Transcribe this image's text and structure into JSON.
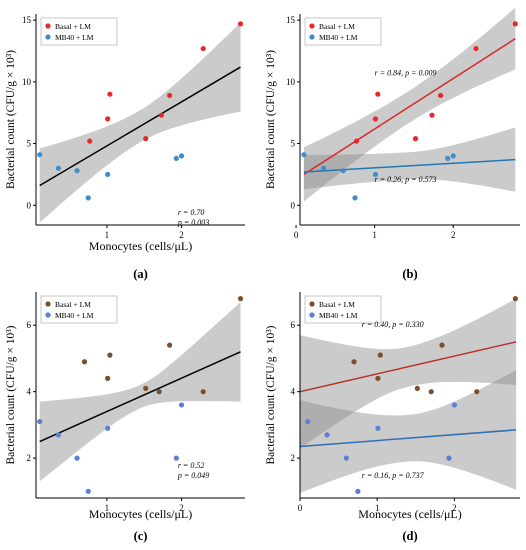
{
  "chart_data": [
    {
      "type": "scatter",
      "panel_label": "(a)",
      "xlabel": "Monocytes (cells/μL)",
      "ylabel": "Bacterial count (CFU/g × 10³)",
      "xlim": [
        0.05,
        2.85
      ],
      "ylim": [
        -1.6,
        15.5
      ],
      "xticks": [
        1,
        2
      ],
      "yticks": [
        0,
        5,
        10,
        15
      ],
      "grid": false,
      "legend": {
        "placement": "top-left",
        "entries": [
          "Basal + LM",
          "MB40 + LM"
        ]
      },
      "series": [
        {
          "name": "Basal + LM",
          "color": "#e8282d",
          "points": [
            [
              0.77,
              5.2
            ],
            [
              1.01,
              7.0
            ],
            [
              1.04,
              9.0
            ],
            [
              1.52,
              5.4
            ],
            [
              1.73,
              7.3
            ],
            [
              1.84,
              8.9
            ],
            [
              2.29,
              12.7
            ],
            [
              2.79,
              14.7
            ]
          ]
        },
        {
          "name": "MB40 + LM",
          "color": "#3f8ecc",
          "points": [
            [
              0.1,
              4.1
            ],
            [
              0.35,
              3.0
            ],
            [
              0.6,
              2.8
            ],
            [
              0.75,
              0.6
            ],
            [
              1.01,
              2.5
            ],
            [
              1.93,
              3.8
            ],
            [
              2.0,
              4.0
            ]
          ]
        }
      ],
      "fits": [
        {
          "color": "#000000",
          "x": [
            0.1,
            2.79
          ],
          "y": [
            1.6,
            11.2
          ],
          "band_half_width_start": 3.0,
          "band_half_width_mid": 1.3,
          "band_half_width_end": 3.6
        }
      ],
      "annotations": [
        {
          "lines": [
            "r = 0.70",
            "p = 0.003"
          ],
          "data_x": 1.95,
          "data_y": -0.8
        }
      ]
    },
    {
      "type": "scatter",
      "panel_label": "(b)",
      "xlabel": "",
      "ylabel": "Bacterial count (CFU/g × 10³)",
      "xlim": [
        0.05,
        2.85
      ],
      "ylim": [
        -1.6,
        15.5
      ],
      "xticks": [
        0,
        1,
        2
      ],
      "yticks": [
        0,
        5,
        10,
        15
      ],
      "grid": false,
      "legend": {
        "placement": "top-left",
        "entries": [
          "Basal + LM",
          "MB40 + LM"
        ]
      },
      "series": [
        {
          "name": "Basal + LM",
          "color": "#e8282d",
          "points": [
            [
              0.77,
              5.2
            ],
            [
              1.01,
              7.0
            ],
            [
              1.04,
              9.0
            ],
            [
              1.52,
              5.4
            ],
            [
              1.73,
              7.3
            ],
            [
              1.84,
              8.9
            ],
            [
              2.29,
              12.7
            ],
            [
              2.79,
              14.7
            ]
          ]
        },
        {
          "name": "MB40 + LM",
          "color": "#3f8ecc",
          "points": [
            [
              0.1,
              4.1
            ],
            [
              0.35,
              3.0
            ],
            [
              0.6,
              2.8
            ],
            [
              0.75,
              0.6
            ],
            [
              1.01,
              2.5
            ],
            [
              1.93,
              3.8
            ],
            [
              2.0,
              4.0
            ]
          ]
        }
      ],
      "fits": [
        {
          "color": "#d62728",
          "x": [
            0.1,
            2.79
          ],
          "y": [
            2.5,
            13.5
          ],
          "band_half_width_start": 2.2,
          "band_half_width_mid": 1.3,
          "band_half_width_end": 2.5
        },
        {
          "color": "#1f77b4",
          "x": [
            0.1,
            2.79
          ],
          "y": [
            2.7,
            3.7
          ],
          "band_half_width_start": 1.4,
          "band_half_width_mid": 1.1,
          "band_half_width_end": 2.6
        }
      ],
      "annotations": [
        {
          "lines": [
            "r = 0.84, p = 0.009"
          ],
          "data_x": 1.0,
          "data_y": 10.5
        },
        {
          "lines": [
            "r = 0.26, p = 0.573"
          ],
          "data_x": 1.0,
          "data_y": 1.9
        }
      ]
    },
    {
      "type": "scatter",
      "panel_label": "(c)",
      "xlabel": "Monocytes (cells/μL)",
      "ylabel": "Bacterial count (CFU/g × 10³)",
      "xlim": [
        0.05,
        2.85
      ],
      "ylim": [
        0.8,
        7.0
      ],
      "xticks": [
        1,
        2
      ],
      "yticks": [
        2,
        4,
        6
      ],
      "grid": false,
      "legend": {
        "placement": "top-left",
        "entries": [
          "Basal + LM",
          "MB40 + LM"
        ]
      },
      "series": [
        {
          "name": "Basal + LM",
          "color": "#7a4f2e",
          "points": [
            [
              0.7,
              4.9
            ],
            [
              1.01,
              4.4
            ],
            [
              1.04,
              5.1
            ],
            [
              1.52,
              4.1
            ],
            [
              1.7,
              4.0
            ],
            [
              1.84,
              5.4
            ],
            [
              2.29,
              4.0
            ],
            [
              2.79,
              6.8
            ]
          ]
        },
        {
          "name": "MB40 + LM",
          "color": "#5b7fd4",
          "points": [
            [
              0.1,
              3.1
            ],
            [
              0.35,
              2.7
            ],
            [
              0.6,
              2.0
            ],
            [
              0.75,
              1.0
            ],
            [
              1.01,
              2.9
            ],
            [
              1.93,
              2.0
            ],
            [
              2.0,
              3.6
            ]
          ]
        }
      ],
      "fits": [
        {
          "color": "#000000",
          "x": [
            0.1,
            2.79
          ],
          "y": [
            2.5,
            5.2
          ],
          "band_half_width_start": 1.2,
          "band_half_width_mid": 0.35,
          "band_half_width_end": 1.5
        }
      ],
      "annotations": [
        {
          "lines": [
            "r = 0.52",
            "p = 0.049"
          ],
          "data_x": 1.95,
          "data_y": 1.7
        }
      ]
    },
    {
      "type": "scatter",
      "panel_label": "(d)",
      "xlabel": "Monocytes (cells/μL)",
      "ylabel": "Bacterial count (CFU/g × 10³)",
      "xlim": [
        0.0,
        2.85
      ],
      "ylim": [
        0.8,
        7.0
      ],
      "xticks": [
        0,
        1,
        2
      ],
      "yticks": [
        2,
        4,
        6
      ],
      "grid": false,
      "legend": {
        "placement": "top-left",
        "entries": [
          "Basal + LM",
          "MB40 + LM"
        ]
      },
      "series": [
        {
          "name": "Basal + LM",
          "color": "#7a4f2e",
          "points": [
            [
              0.7,
              4.9
            ],
            [
              1.01,
              4.4
            ],
            [
              1.04,
              5.1
            ],
            [
              1.52,
              4.1
            ],
            [
              1.7,
              4.0
            ],
            [
              1.84,
              5.4
            ],
            [
              2.29,
              4.0
            ],
            [
              2.79,
              6.8
            ]
          ]
        },
        {
          "name": "MB40 + LM",
          "color": "#5b7fd4",
          "points": [
            [
              0.1,
              3.1
            ],
            [
              0.35,
              2.7
            ],
            [
              0.6,
              2.0
            ],
            [
              0.75,
              1.0
            ],
            [
              1.01,
              2.9
            ],
            [
              1.93,
              2.0
            ],
            [
              2.0,
              3.6
            ]
          ]
        }
      ],
      "fits": [
        {
          "color": "#b9342a",
          "x": [
            0.0,
            2.8
          ],
          "y": [
            4.0,
            5.5
          ],
          "band_half_width_start": 1.7,
          "band_half_width_mid": 0.6,
          "band_half_width_end": 1.3
        },
        {
          "color": "#2f6fb5",
          "x": [
            0.0,
            2.8
          ],
          "y": [
            2.35,
            2.85
          ],
          "band_half_width_start": 1.4,
          "band_half_width_mid": 0.7,
          "band_half_width_end": 1.8
        }
      ],
      "annotations": [
        {
          "lines": [
            "r = 0.40, p = 0.330"
          ],
          "data_x": 0.8,
          "data_y": 5.95
        },
        {
          "lines": [
            "r = 0.16, p = 0.737"
          ],
          "data_x": 0.8,
          "data_y": 1.4
        }
      ]
    }
  ]
}
